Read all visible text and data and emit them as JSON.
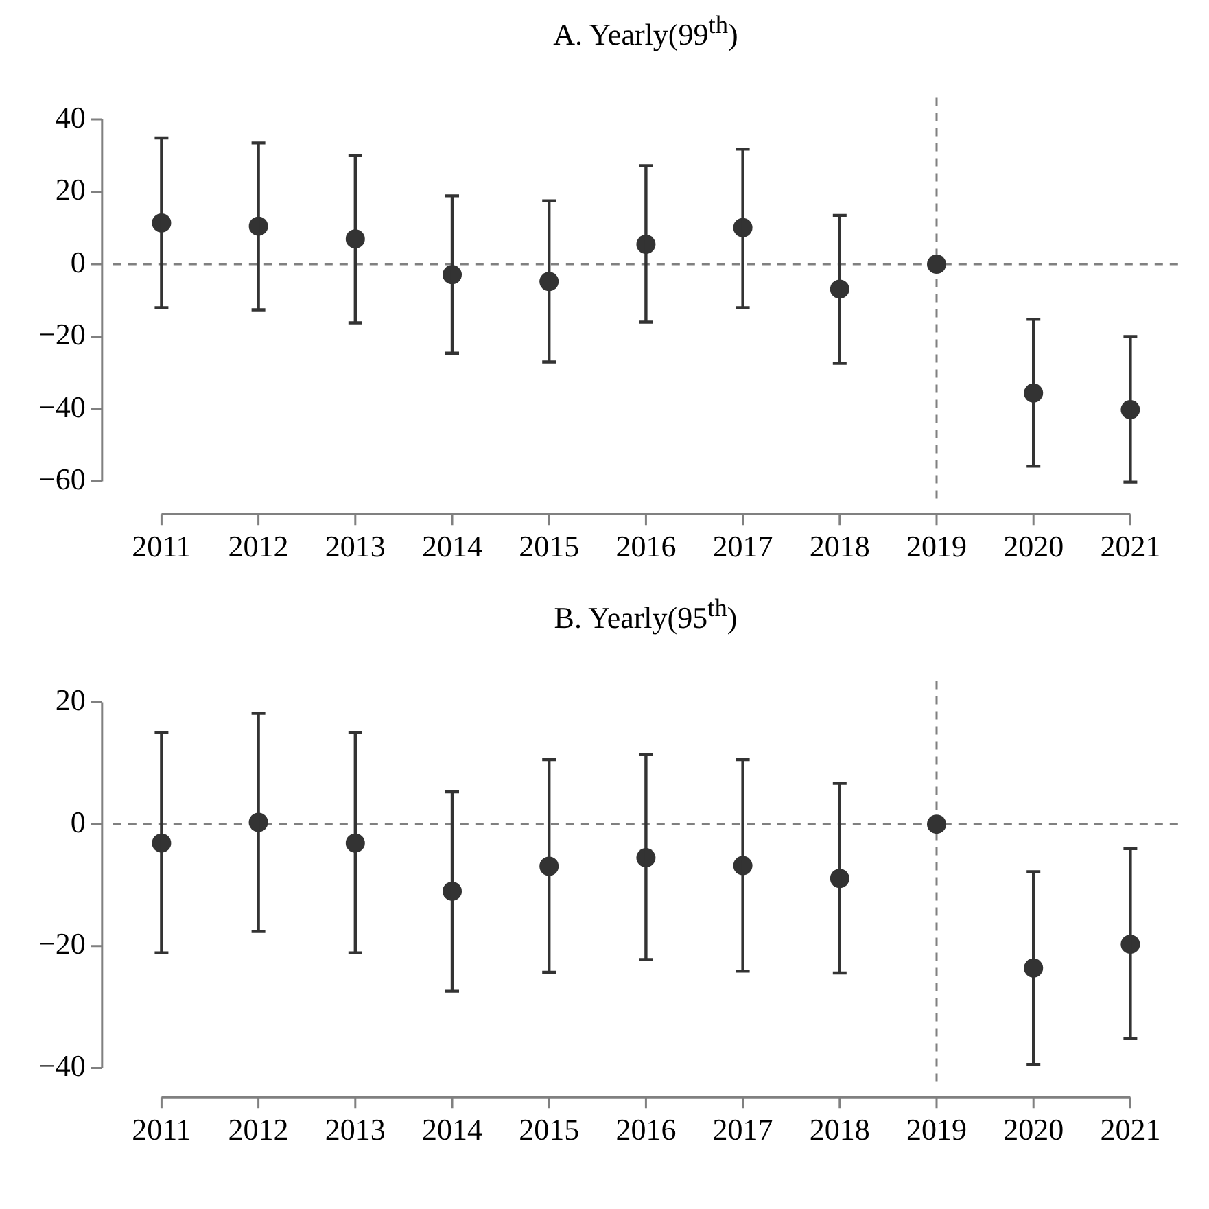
{
  "chart_data": [
    {
      "type": "scatter",
      "title": "A. Yearly(99$^{th}$)",
      "categories": [
        "2011",
        "2012",
        "2013",
        "2014",
        "2015",
        "2016",
        "2017",
        "2018",
        "2019",
        "2020",
        "2021"
      ],
      "series": [
        {
          "color": "#333333",
          "values": [
            11.4,
            10.5,
            7,
            -2.9,
            -4.8,
            5.5,
            10.1,
            -6.9,
            0,
            -35.6,
            -40.2
          ],
          "errors": [
            [
              -12,
              34.9
            ],
            [
              -12.6,
              33.5
            ],
            [
              -16.2,
              30
            ],
            [
              -24.6,
              18.9
            ],
            [
              -27,
              17.5
            ],
            [
              -16,
              27.2
            ],
            [
              -12,
              31.8
            ],
            [
              -27.4,
              13.5
            ],
            null,
            [
              -55.8,
              -15.2
            ],
            [
              -60.2,
              -20
            ]
          ]
        }
      ],
      "ylim": [
        -66,
        46
      ],
      "yticks": [
        -60,
        -40,
        -20,
        0,
        20,
        40
      ],
      "grid": false,
      "legend": false,
      "marker": "circle",
      "ref_lines": [
        {
          "axis": "y",
          "value": 0,
          "color": "#808080",
          "line_style": "dashed"
        },
        {
          "axis": "x",
          "value": "2019",
          "color": "#808080",
          "line_style": "dashed"
        }
      ]
    },
    {
      "type": "scatter",
      "title": "B. Yearly(95$^{th}$)",
      "categories": [
        "2011",
        "2012",
        "2013",
        "2014",
        "2015",
        "2016",
        "2017",
        "2018",
        "2019",
        "2020",
        "2021"
      ],
      "series": [
        {
          "color": "#333333",
          "values": [
            -3.1,
            0.3,
            -3.1,
            -11,
            -6.9,
            -5.5,
            -6.8,
            -8.9,
            0,
            -23.6,
            -19.7
          ],
          "errors": [
            [
              -21.1,
              15
            ],
            [
              -17.6,
              18.2
            ],
            [
              -21.1,
              15
            ],
            [
              -27.4,
              5.3
            ],
            [
              -24.3,
              10.6
            ],
            [
              -22.2,
              11.4
            ],
            [
              -24.1,
              10.6
            ],
            [
              -24.4,
              6.7
            ],
            null,
            [
              -39.4,
              -7.8
            ],
            [
              -35.2,
              -4
            ]
          ]
        }
      ],
      "ylim": [
        -43,
        23.5
      ],
      "yticks": [
        -40,
        -20,
        0,
        20
      ],
      "grid": false,
      "legend": false,
      "marker": "circle",
      "ref_lines": [
        {
          "axis": "y",
          "value": 0,
          "color": "#808080",
          "line_style": "dashed"
        },
        {
          "axis": "x",
          "value": "2019",
          "color": "#808080",
          "line_style": "dashed"
        }
      ]
    }
  ]
}
